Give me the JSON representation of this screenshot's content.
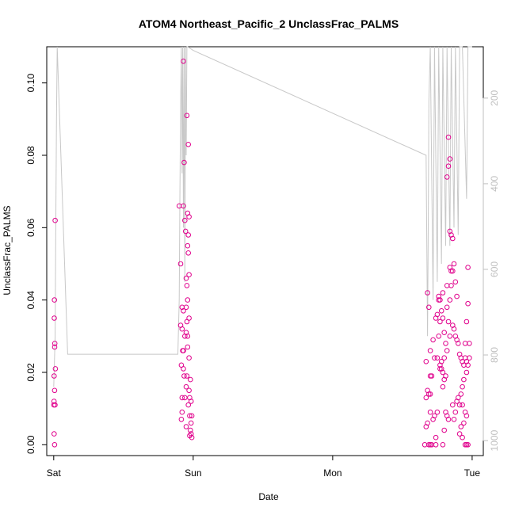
{
  "chart_data": {
    "type": "scatter",
    "title": "ATOM4 Northeast_Pacific_2 UnclassFrac_PALMS",
    "xlabel": "Date",
    "ylabel": "UnclassFrac_PALMS",
    "x_unit": "days since Sat 00:00",
    "xlim": [
      -0.05,
      3.08
    ],
    "ylim": [
      -0.003,
      0.11
    ],
    "x_ticks": [
      {
        "value": 0,
        "label": "Sat"
      },
      {
        "value": 1,
        "label": "Sun"
      },
      {
        "value": 2,
        "label": "Mon"
      },
      {
        "value": 3,
        "label": "Tue"
      }
    ],
    "y_ticks": [
      0.0,
      0.02,
      0.04,
      0.06,
      0.08,
      0.1
    ],
    "y_tick_labels": [
      "0.00",
      "0.02",
      "0.04",
      "0.06",
      "0.08",
      "0.10"
    ],
    "point_color": "#e0008c",
    "line_color": "#c8c8c8",
    "secondary_axis": {
      "side": "right",
      "color": "#bfbfbf",
      "ticks": [
        200,
        400,
        600,
        800,
        1000
      ],
      "lim": [
        80,
        1035
      ],
      "reversed": true
    },
    "series": [
      {
        "type": "points",
        "points": [
          [
            0.01,
            0.062
          ],
          [
            0.005,
            0.04
          ],
          [
            0.004,
            0.035
          ],
          [
            0.008,
            0.028
          ],
          [
            0.007,
            0.027
          ],
          [
            0.012,
            0.021
          ],
          [
            0.003,
            0.019
          ],
          [
            0.006,
            0.015
          ],
          [
            0.002,
            0.012
          ],
          [
            0.001,
            0.011
          ],
          [
            0.009,
            0.011
          ],
          [
            0.003,
            0.003
          ],
          [
            0.006,
            0.0
          ],
          [
            0.9,
            0.066
          ],
          [
            0.93,
            0.066
          ],
          [
            0.96,
            0.064
          ],
          [
            0.97,
            0.063
          ],
          [
            0.94,
            0.062
          ],
          [
            0.91,
            0.05
          ],
          [
            0.92,
            0.038
          ],
          [
            0.93,
            0.037
          ],
          [
            0.95,
            0.038
          ],
          [
            0.94,
            0.03
          ],
          [
            0.91,
            0.033
          ],
          [
            0.92,
            0.032
          ],
          [
            0.925,
            0.026
          ],
          [
            0.93,
            0.026
          ],
          [
            0.95,
            0.031
          ],
          [
            0.96,
            0.03
          ],
          [
            0.97,
            0.024
          ],
          [
            0.915,
            0.022
          ],
          [
            0.93,
            0.021
          ],
          [
            0.935,
            0.019
          ],
          [
            0.955,
            0.019
          ],
          [
            0.98,
            0.018
          ],
          [
            0.95,
            0.016
          ],
          [
            0.97,
            0.015
          ],
          [
            0.92,
            0.013
          ],
          [
            0.94,
            0.013
          ],
          [
            0.975,
            0.013
          ],
          [
            0.985,
            0.012
          ],
          [
            0.965,
            0.011
          ],
          [
            0.92,
            0.009
          ],
          [
            0.99,
            0.008
          ],
          [
            0.975,
            0.008
          ],
          [
            0.915,
            0.007
          ],
          [
            0.95,
            0.005
          ],
          [
            0.985,
            0.006
          ],
          [
            0.98,
            0.004
          ],
          [
            0.985,
            0.003
          ],
          [
            0.99,
            0.002
          ],
          [
            0.975,
            0.0025
          ],
          [
            0.93,
            0.106
          ],
          [
            0.955,
            0.091
          ],
          [
            0.965,
            0.083
          ],
          [
            0.935,
            0.078
          ],
          [
            0.945,
            0.059
          ],
          [
            0.965,
            0.058
          ],
          [
            0.96,
            0.055
          ],
          [
            0.965,
            0.053
          ],
          [
            0.97,
            0.047
          ],
          [
            0.95,
            0.046
          ],
          [
            0.955,
            0.044
          ],
          [
            0.96,
            0.04
          ],
          [
            0.955,
            0.034
          ],
          [
            0.97,
            0.035
          ],
          [
            0.96,
            0.027
          ],
          [
            2.68,
            0.042
          ],
          [
            2.69,
            0.038
          ],
          [
            2.72,
            0.029
          ],
          [
            2.7,
            0.026
          ],
          [
            2.7,
            0.019
          ],
          [
            2.67,
            0.023
          ],
          [
            2.71,
            0.019
          ],
          [
            2.68,
            0.015
          ],
          [
            2.69,
            0.014
          ],
          [
            2.7,
            0.014
          ],
          [
            2.67,
            0.013
          ],
          [
            2.7,
            0.009
          ],
          [
            2.72,
            0.007
          ],
          [
            2.68,
            0.006
          ],
          [
            2.67,
            0.005
          ],
          [
            2.66,
            0.0
          ],
          [
            2.69,
            0.0
          ],
          [
            2.7,
            0.0
          ],
          [
            2.71,
            0.0
          ],
          [
            2.74,
            0.0
          ],
          [
            2.79,
            0.0
          ],
          [
            2.96,
            0.0
          ],
          [
            2.97,
            0.0
          ],
          [
            2.75,
            0.009
          ],
          [
            2.73,
            0.008
          ],
          [
            2.74,
            0.002
          ],
          [
            2.76,
            0.03
          ],
          [
            2.77,
            0.034
          ],
          [
            2.75,
            0.036
          ],
          [
            2.76,
            0.04
          ],
          [
            2.74,
            0.035
          ],
          [
            2.73,
            0.024
          ],
          [
            2.75,
            0.024
          ],
          [
            2.77,
            0.022
          ],
          [
            2.77,
            0.021
          ],
          [
            2.78,
            0.021
          ],
          [
            2.79,
            0.016
          ],
          [
            2.8,
            0.018
          ],
          [
            2.81,
            0.019
          ],
          [
            2.79,
            0.02
          ],
          [
            2.78,
            0.023
          ],
          [
            2.8,
            0.024
          ],
          [
            2.82,
            0.026
          ],
          [
            2.81,
            0.028
          ],
          [
            2.8,
            0.031
          ],
          [
            2.79,
            0.035
          ],
          [
            2.78,
            0.037
          ],
          [
            2.77,
            0.04
          ],
          [
            2.76,
            0.041
          ],
          [
            2.79,
            0.042
          ],
          [
            2.82,
            0.044
          ],
          [
            2.84,
            0.049
          ],
          [
            2.85,
            0.048
          ],
          [
            2.86,
            0.048
          ],
          [
            2.87,
            0.05
          ],
          [
            2.88,
            0.045
          ],
          [
            2.89,
            0.041
          ],
          [
            2.85,
            0.044
          ],
          [
            2.84,
            0.04
          ],
          [
            2.82,
            0.038
          ],
          [
            2.83,
            0.034
          ],
          [
            2.86,
            0.033
          ],
          [
            2.87,
            0.032
          ],
          [
            2.88,
            0.03
          ],
          [
            2.89,
            0.029
          ],
          [
            2.9,
            0.028
          ],
          [
            2.91,
            0.025
          ],
          [
            2.92,
            0.024
          ],
          [
            2.93,
            0.023
          ],
          [
            2.94,
            0.022
          ],
          [
            2.95,
            0.024
          ],
          [
            2.96,
            0.023
          ],
          [
            2.97,
            0.022
          ],
          [
            2.95,
            0.028
          ],
          [
            2.96,
            0.034
          ],
          [
            2.97,
            0.039
          ],
          [
            2.97,
            0.049
          ],
          [
            2.98,
            0.028
          ],
          [
            2.98,
            0.024
          ],
          [
            2.96,
            0.02
          ],
          [
            2.94,
            0.018
          ],
          [
            2.93,
            0.016
          ],
          [
            2.92,
            0.014
          ],
          [
            2.9,
            0.013
          ],
          [
            2.89,
            0.012
          ],
          [
            2.91,
            0.011
          ],
          [
            2.93,
            0.011
          ],
          [
            2.95,
            0.009
          ],
          [
            2.96,
            0.008
          ],
          [
            2.94,
            0.006
          ],
          [
            2.92,
            0.005
          ],
          [
            2.91,
            0.003
          ],
          [
            2.93,
            0.002
          ],
          [
            2.95,
            0.0
          ],
          [
            2.85,
            0.058
          ],
          [
            2.86,
            0.057
          ],
          [
            2.84,
            0.059
          ],
          [
            2.83,
            0.077
          ],
          [
            2.82,
            0.074
          ],
          [
            2.84,
            0.079
          ],
          [
            2.83,
            0.085
          ],
          [
            2.84,
            0.03
          ],
          [
            2.86,
            0.011
          ],
          [
            2.88,
            0.009
          ],
          [
            2.87,
            0.007
          ],
          [
            2.83,
            0.007
          ],
          [
            2.82,
            0.008
          ],
          [
            2.81,
            0.009
          ],
          [
            2.8,
            0.004
          ]
        ]
      },
      {
        "type": "line",
        "axis": "secondary",
        "points": [
          [
            0.0,
            0.016
          ],
          [
            0.01,
            0.03
          ],
          [
            0.015,
            0.06
          ],
          [
            0.02,
            0.09
          ],
          [
            0.025,
            0.11
          ],
          [
            0.1,
            0.025
          ],
          [
            0.89,
            0.025
          ],
          [
            0.9,
            0.04
          ],
          [
            0.905,
            0.07
          ],
          [
            0.91,
            0.095
          ],
          [
            0.915,
            0.11
          ],
          [
            0.92,
            0.075
          ],
          [
            0.925,
            0.11
          ],
          [
            0.93,
            0.06
          ],
          [
            0.935,
            0.11
          ],
          [
            0.94,
            0.045
          ],
          [
            0.945,
            0.11
          ],
          [
            0.95,
            0.08
          ],
          [
            0.955,
            0.11
          ],
          [
            0.96,
            0.11
          ],
          [
            1.0,
            0.109
          ],
          [
            2.67,
            0.08
          ],
          [
            2.68,
            0.03
          ],
          [
            2.685,
            0.06
          ],
          [
            2.69,
            0.095
          ],
          [
            2.7,
            0.11
          ],
          [
            2.72,
            0.04
          ],
          [
            2.73,
            0.11
          ],
          [
            2.75,
            0.045
          ],
          [
            2.76,
            0.11
          ],
          [
            2.78,
            0.05
          ],
          [
            2.79,
            0.11
          ],
          [
            2.81,
            0.055
          ],
          [
            2.82,
            0.11
          ],
          [
            2.84,
            0.055
          ],
          [
            2.85,
            0.11
          ],
          [
            2.87,
            0.06
          ],
          [
            2.88,
            0.11
          ],
          [
            2.9,
            0.058
          ],
          [
            2.91,
            0.11
          ],
          [
            2.93,
            0.11
          ],
          [
            2.96,
            0.068
          ],
          [
            2.97,
            0.11
          ],
          [
            3.0,
            0.11
          ]
        ]
      }
    ]
  }
}
